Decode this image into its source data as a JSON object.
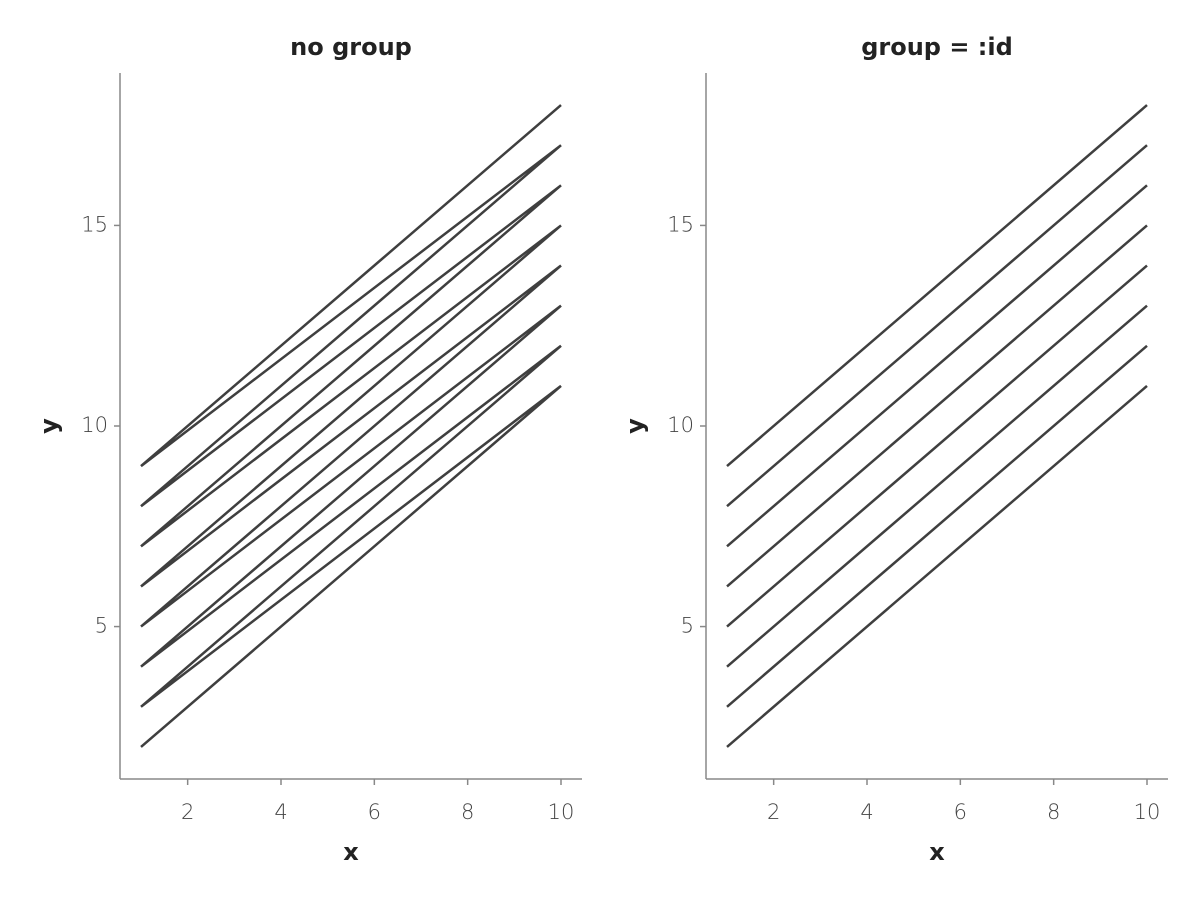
{
  "chart_data": [
    {
      "type": "line",
      "title": "no group",
      "xlabel": "x",
      "ylabel": "y",
      "xlim": [
        0.55,
        10.45
      ],
      "ylim": [
        1.2,
        18.8
      ],
      "xticks": [
        2,
        4,
        6,
        8,
        10
      ],
      "yticks": [
        5,
        10,
        15
      ],
      "series": [
        {
          "color": "#3f3f3f",
          "x": [
            1,
            10,
            1,
            10,
            1,
            10,
            1,
            10,
            1,
            10,
            1,
            10,
            1,
            10,
            1,
            10
          ],
          "values": [
            2,
            11,
            3,
            12,
            4,
            13,
            5,
            14,
            6,
            15,
            7,
            16,
            8,
            17,
            9,
            18
          ]
        }
      ]
    },
    {
      "type": "line",
      "title": "group = :id",
      "xlabel": "x",
      "ylabel": "y",
      "xlim": [
        0.55,
        10.45
      ],
      "ylim": [
        1.2,
        18.8
      ],
      "xticks": [
        2,
        4,
        6,
        8,
        10
      ],
      "yticks": [
        5,
        10,
        15
      ],
      "series": [
        {
          "color": "#3f3f3f",
          "x": [
            1,
            10
          ],
          "values": [
            2,
            11
          ]
        },
        {
          "color": "#3f3f3f",
          "x": [
            1,
            10
          ],
          "values": [
            3,
            12
          ]
        },
        {
          "color": "#3f3f3f",
          "x": [
            1,
            10
          ],
          "values": [
            4,
            13
          ]
        },
        {
          "color": "#3f3f3f",
          "x": [
            1,
            10
          ],
          "values": [
            5,
            14
          ]
        },
        {
          "color": "#3f3f3f",
          "x": [
            1,
            10
          ],
          "values": [
            6,
            15
          ]
        },
        {
          "color": "#3f3f3f",
          "x": [
            1,
            10
          ],
          "values": [
            7,
            16
          ]
        },
        {
          "color": "#3f3f3f",
          "x": [
            1,
            10
          ],
          "values": [
            8,
            17
          ]
        },
        {
          "color": "#3f3f3f",
          "x": [
            1,
            10
          ],
          "values": [
            9,
            18
          ]
        }
      ]
    }
  ]
}
